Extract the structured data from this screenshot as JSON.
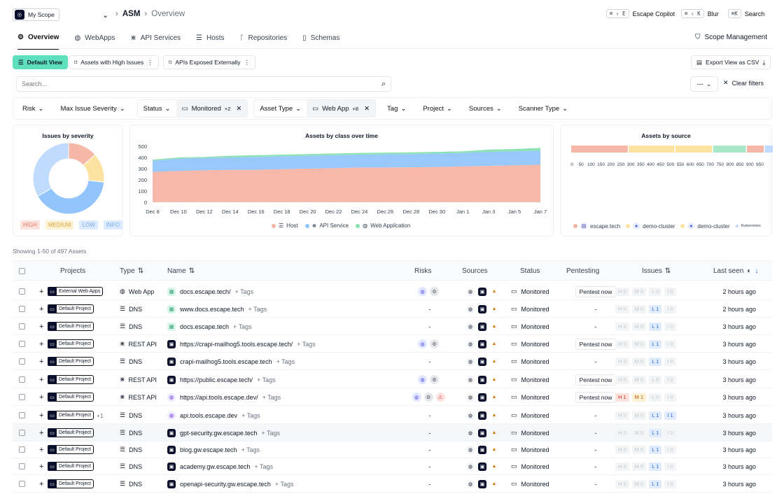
{
  "scope": {
    "label": "My Scope"
  },
  "breadcrumb": {
    "root": "ASM",
    "current": "Overview"
  },
  "top_actions": [
    {
      "keys": "⌘ ⇧ E",
      "label": "Escape Copilot"
    },
    {
      "keys": "⌘ ⇧ K",
      "label": "Blur"
    },
    {
      "keys": "⌘K",
      "label": "Search"
    }
  ],
  "tabs": [
    {
      "label": "Overview"
    },
    {
      "label": "WebApps"
    },
    {
      "label": "API Services"
    },
    {
      "label": "Hosts"
    },
    {
      "label": "Repositories"
    },
    {
      "label": "Schemas"
    }
  ],
  "scope_management": "Scope Management",
  "views": {
    "default": "Default View",
    "v1": "Assets with High Issues",
    "v2": "APIs Exposed Externally"
  },
  "export": "Export View as CSV",
  "search": {
    "placeholder": "Search..."
  },
  "dash_select": "---",
  "clear_filters": "Clear filters",
  "filters": {
    "risk": "Risk",
    "max_sev": "Max Issue Severity",
    "status": "Status",
    "status_value": "Monitored",
    "status_more": "+2",
    "asset_type": "Asset Type",
    "asset_value": "Web App",
    "asset_more": "+8",
    "tag": "Tag",
    "project": "Project",
    "sources": "Sources",
    "scanner": "Scanner Type"
  },
  "cards": {
    "severity": {
      "title": "Issues by severity",
      "legend": [
        "HIGH",
        "MEDIUM",
        "LOW",
        "INFO"
      ],
      "chart_data": {
        "type": "pie",
        "labels": [
          "HIGH",
          "MEDIUM",
          "LOW",
          "INFO"
        ],
        "values": [
          12,
          12,
          36,
          30
        ],
        "colors": [
          "#f4b7a8",
          "#fde3a1",
          "#93c5fd",
          "#bfdbfe"
        ]
      }
    },
    "class": {
      "title": "Assets by class over time",
      "chart_data": {
        "type": "area",
        "categories": [
          "Dec 8",
          "Dec 10",
          "Dec 12",
          "Dec 14",
          "Dec 16",
          "Dec 18",
          "Dec 20",
          "Dec 22",
          "Dec 24",
          "Dec 26",
          "Dec 28",
          "Dec 30",
          "Jan 1",
          "Jan 3",
          "Jan 5",
          "Jan 7"
        ],
        "ylim": [
          0,
          500
        ],
        "yticks": [
          0,
          100,
          200,
          300,
          400,
          500
        ],
        "series": [
          {
            "name": "Host",
            "values": [
              270,
              280,
              285,
              290,
              290,
              295,
              300,
              305,
              310,
              310,
              312,
              315,
              320,
              325,
              330,
              335
            ],
            "color": "#f4b4a4"
          },
          {
            "name": "API Service",
            "values": [
              100,
              110,
              110,
              110,
              115,
              115,
              115,
              115,
              115,
              118,
              118,
              120,
              120,
              125,
              125,
              125
            ],
            "color": "#93c5fd"
          },
          {
            "name": "Web Application",
            "values": [
              10,
              10,
              10,
              15,
              15,
              15,
              15,
              15,
              15,
              15,
              15,
              15,
              15,
              20,
              20,
              25
            ],
            "color": "#86e0b0"
          }
        ]
      }
    },
    "source": {
      "title": "Assets by source",
      "ticks": [
        "0",
        "50",
        "100",
        "150",
        "200",
        "250",
        "300",
        "350",
        "400",
        "450",
        "500",
        "550",
        "600",
        "650",
        "700",
        "750",
        "800",
        "850",
        "900",
        "950"
      ],
      "legend": [
        {
          "label": "escape.tech",
          "color": "#f4b4a4"
        },
        {
          "label": "demo-cluster",
          "color": "#fde3a1"
        },
        {
          "label": "demo-cluster",
          "color": "#fde3a1"
        },
        {
          "label": "Kubernetes",
          "color": "#bfdbfe"
        }
      ],
      "chart_data": {
        "type": "bar",
        "series": [
          {
            "name": "escape.tech",
            "value": 290,
            "color": "#f4b7a8"
          },
          {
            "name": "demo-cluster",
            "value": 235,
            "color": "#fde3a1"
          },
          {
            "name": "demo-cluster",
            "value": 190,
            "color": "#fde3a1"
          },
          {
            "name": "",
            "value": 170,
            "color": "#a7e8c8"
          },
          {
            "name": "",
            "value": 90,
            "color": "#f4b7a8"
          },
          {
            "name": "Kubernetes",
            "value": 50,
            "color": "#bfdbfe"
          }
        ],
        "xlim": [
          0,
          980
        ]
      }
    }
  },
  "showing": "Showing 1-50 of 497 Assets",
  "columns": {
    "projects": "Projects",
    "type": "Type",
    "name": "Name",
    "risks": "Risks",
    "sources": "Sources",
    "status": "Status",
    "pentesting": "Pentesting",
    "issues": "Issues",
    "last_seen": "Last seen"
  },
  "rows": [
    {
      "project": "External Web Apps",
      "type": "Web App",
      "name": "docs.escape.tech/",
      "tags": "Tags",
      "risks": "2",
      "status": "Monitored",
      "pentest": "Pentest now",
      "issues": [
        "H 0",
        "M 0",
        "L 0",
        "I 0"
      ],
      "seen": "2 hours ago"
    },
    {
      "project": "Default Project",
      "type": "DNS",
      "name": "www.docs.escape.tech",
      "tags": "Tags",
      "risks": "-",
      "status": "Monitored",
      "pentest": "-",
      "issues": [
        "H 0",
        "M 0",
        "L 1",
        "I 0"
      ],
      "seen": "2 hours ago"
    },
    {
      "project": "Default Project",
      "type": "DNS",
      "name": "docs.escape.tech",
      "tags": "Tags",
      "risks": "-",
      "status": "Monitored",
      "pentest": "-",
      "issues": [
        "H 0",
        "M 0",
        "L 1",
        "I 0"
      ],
      "seen": "3 hours ago"
    },
    {
      "project": "Default Project",
      "type": "REST API",
      "name": "https://crapi-mailhog5.tools.escape.tech/",
      "tags": "Tags",
      "risks": "2",
      "status": "Monitored",
      "pentest": "Pentest now",
      "issues": [
        "H 0",
        "M 0",
        "L 1",
        "I 0"
      ],
      "seen": "3 hours ago"
    },
    {
      "project": "Default Project",
      "type": "DNS",
      "name": "crapi-mailhog5.tools.escape.tech",
      "tags": "Tags",
      "risks": "-",
      "status": "Monitored",
      "pentest": "-",
      "issues": [
        "H 0",
        "M 0",
        "L 1",
        "I 0"
      ],
      "seen": "3 hours ago"
    },
    {
      "project": "Default Project",
      "type": "REST API",
      "name": "https://public.escape.tech/",
      "tags": "Tags",
      "risks": "2",
      "status": "Monitored",
      "pentest": "Pentest now",
      "issues": [
        "H 0",
        "M 0",
        "L 0",
        "I 0"
      ],
      "seen": "3 hours ago"
    },
    {
      "project": "Default Project",
      "type": "REST API",
      "name": "https://api.tools.escape.dev/",
      "tags": "Tags",
      "risks": "3",
      "status": "Monitored",
      "pentest": "Pentest now",
      "issues": [
        "H 1",
        "M 1",
        "L 0",
        "I 0"
      ],
      "seen": "3 hours ago"
    },
    {
      "project": "Default Project",
      "project_more": "+1",
      "type": "DNS",
      "name": "api.tools.escape.dev",
      "tags": "Tags",
      "risks": "-",
      "status": "Monitored",
      "pentest": "-",
      "issues": [
        "H 0",
        "M 0",
        "L 1",
        "I 1"
      ],
      "seen": "3 hours ago"
    },
    {
      "project": "Default Project",
      "type": "DNS",
      "name": "gpt-security.gw.escape.tech",
      "tags": "Tags",
      "risks": "-",
      "status": "Monitored",
      "pentest": "-",
      "issues": [
        "H 0",
        "M 0",
        "L 1",
        "I 0"
      ],
      "seen": "3 hours ago"
    },
    {
      "project": "Default Project",
      "type": "DNS",
      "name": "blog.gw.escape.tech",
      "tags": "Tags",
      "risks": "-",
      "status": "Monitored",
      "pentest": "-",
      "issues": [
        "H 0",
        "M 0",
        "L 1",
        "I 0"
      ],
      "seen": "3 hours ago"
    },
    {
      "project": "Default Project",
      "type": "DNS",
      "name": "academy.gw.escape.tech",
      "tags": "Tags",
      "risks": "-",
      "status": "Monitored",
      "pentest": "-",
      "issues": [
        "H 0",
        "M 0",
        "L 1",
        "I 0"
      ],
      "seen": "3 hours ago"
    },
    {
      "project": "Default Project",
      "type": "DNS",
      "name": "openapi-security.gw.escape.tech",
      "tags": "Tags",
      "risks": "-",
      "status": "Monitored",
      "pentest": "-",
      "issues": [
        "H 0",
        "M 0",
        "L 1",
        "I 0"
      ],
      "seen": "3 hours ago"
    }
  ]
}
